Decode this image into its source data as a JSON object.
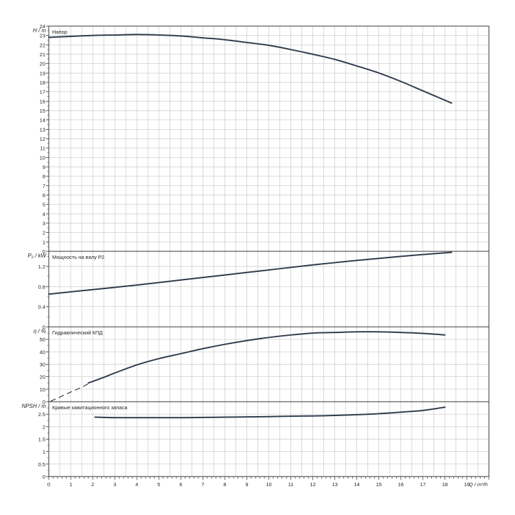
{
  "chart_data": [
    {
      "type": "line",
      "ylabel": "H / m",
      "annotation": "Напор",
      "ylim": [
        0,
        24
      ],
      "yticks": [
        0,
        1,
        2,
        3,
        4,
        5,
        6,
        7,
        8,
        9,
        10,
        11,
        12,
        13,
        14,
        15,
        16,
        17,
        18,
        19,
        20,
        21,
        22,
        23,
        24
      ],
      "yticklabels": [
        "0",
        "1",
        "2",
        "3",
        "4",
        "5",
        "6",
        "7",
        "8",
        "9",
        "10",
        "11",
        "12",
        "13",
        "14",
        "15",
        "16",
        "17",
        "18",
        "19",
        "20",
        "21",
        "22",
        "23",
        "24"
      ],
      "series": [
        {
          "style": "solid",
          "x": [
            0,
            1,
            2,
            3,
            4,
            5,
            6,
            7,
            8,
            9,
            10,
            11,
            12,
            13,
            14,
            15,
            16,
            17,
            18,
            18.3
          ],
          "y": [
            22.8,
            22.9,
            23.0,
            23.05,
            23.1,
            23.05,
            22.95,
            22.75,
            22.55,
            22.25,
            21.95,
            21.5,
            21.0,
            20.45,
            19.75,
            19.0,
            18.1,
            17.1,
            16.1,
            15.8
          ]
        }
      ]
    },
    {
      "type": "line",
      "ylabel": "P₂ / kW",
      "annotation": "Мощность на валу P2",
      "ylim": [
        0,
        1.5
      ],
      "yticks": [
        0,
        0.4,
        0.8,
        1.2
      ],
      "yticklabels": [
        "0",
        "0.4",
        "0.8",
        "1.2"
      ],
      "series": [
        {
          "style": "solid",
          "x": [
            0,
            2,
            4,
            6,
            8,
            10,
            12,
            14,
            16,
            18,
            18.3
          ],
          "y": [
            0.65,
            0.74,
            0.83,
            0.93,
            1.03,
            1.13,
            1.23,
            1.32,
            1.4,
            1.47,
            1.48
          ]
        }
      ]
    },
    {
      "type": "line",
      "ylabel": "η / %",
      "annotation": "Гидравлический КПД",
      "ylim": [
        0,
        60
      ],
      "yticks": [
        0,
        10,
        20,
        30,
        40,
        50
      ],
      "yticklabels": [
        "0",
        "10",
        "20",
        "30",
        "40",
        "50"
      ],
      "series": [
        {
          "style": "dashed",
          "x": [
            0.1,
            0.6,
            1.1,
            1.6,
            1.8
          ],
          "y": [
            0.5,
            4.5,
            8.5,
            12.5,
            14.5
          ]
        },
        {
          "style": "solid",
          "x": [
            1.8,
            2.5,
            3,
            4,
            5,
            6,
            7,
            8,
            9,
            10,
            11,
            12,
            13,
            14,
            15,
            16,
            17,
            18
          ],
          "y": [
            15,
            19.5,
            23,
            29.5,
            34.5,
            38.5,
            42.5,
            46,
            49,
            51.5,
            53.5,
            55,
            55.5,
            56,
            56,
            55.5,
            54.8,
            53.5
          ]
        }
      ]
    },
    {
      "type": "line",
      "ylabel": "NPSH / m",
      "annotation": "Кривые кавитационного запаса",
      "ylim": [
        0,
        3.0
      ],
      "yticks": [
        0,
        0.5,
        1,
        1.5,
        2,
        2.5
      ],
      "yticklabels": [
        "0",
        "0.5",
        "1",
        "1.5",
        "2",
        "2.5"
      ],
      "series": [
        {
          "style": "solid",
          "x": [
            2.1,
            3,
            4,
            5,
            6,
            7,
            8,
            9,
            10,
            11,
            12,
            13,
            14,
            15,
            16,
            17,
            18
          ],
          "y": [
            2.38,
            2.36,
            2.36,
            2.36,
            2.36,
            2.37,
            2.38,
            2.39,
            2.4,
            2.42,
            2.43,
            2.45,
            2.48,
            2.52,
            2.58,
            2.65,
            2.78
          ]
        }
      ]
    }
  ],
  "x_axis": {
    "label": "Q / m³/h",
    "xlim": [
      0,
      20
    ],
    "ticks": [
      0,
      1,
      2,
      3,
      4,
      5,
      6,
      7,
      8,
      9,
      10,
      11,
      12,
      13,
      14,
      15,
      16,
      17,
      18,
      19
    ],
    "ticklabels": [
      "0",
      "1",
      "2",
      "3",
      "4",
      "5",
      "6",
      "7",
      "8",
      "9",
      "10",
      "11",
      "12",
      "13",
      "14",
      "15",
      "16",
      "17",
      "18",
      "19"
    ]
  },
  "colors": {
    "curve": "#2e3b4c",
    "grid": "#c8c8c8",
    "frame": "#333333"
  }
}
